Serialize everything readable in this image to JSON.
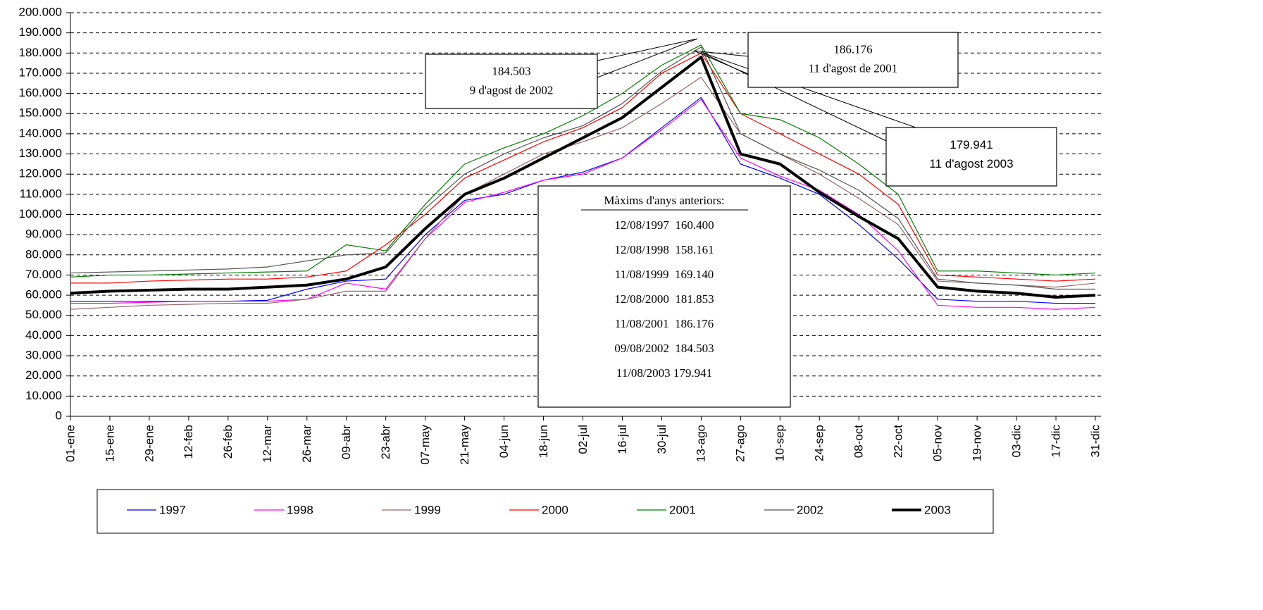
{
  "chart_data": {
    "type": "line",
    "categories": [
      "01-ene",
      "15-ene",
      "29-ene",
      "12-feb",
      "26-feb",
      "12-mar",
      "26-mar",
      "09-abr",
      "23-abr",
      "07-may",
      "21-may",
      "04-jun",
      "18-jun",
      "02-jul",
      "16-jul",
      "30-jul",
      "13-ago",
      "27-ago",
      "10-sep",
      "24-sep",
      "08-oct",
      "22-oct",
      "05-nov",
      "19-nov",
      "03-dic",
      "17-dic",
      "31-dic"
    ],
    "ylim": [
      0,
      200000
    ],
    "yticks": [
      0,
      {
        "value": 10000,
        "label": "10.000"
      },
      {
        "value": 20000,
        "label": "20.000"
      },
      {
        "value": 30000,
        "label": "30.000"
      },
      {
        "value": 40000,
        "label": "40.000"
      },
      {
        "value": 50000,
        "label": "50.000"
      },
      {
        "value": 60000,
        "label": "60.000"
      },
      {
        "value": 70000,
        "label": "70.000"
      },
      {
        "value": 80000,
        "label": "80.000"
      },
      {
        "value": 90000,
        "label": "90.000"
      },
      {
        "value": 100000,
        "label": "100.000"
      },
      {
        "value": 110000,
        "label": "110.000"
      },
      {
        "value": 120000,
        "label": "120.000"
      },
      {
        "value": 130000,
        "label": "130.000"
      },
      {
        "value": 140000,
        "label": "140.000"
      },
      {
        "value": 150000,
        "label": "150.000"
      },
      {
        "value": 160000,
        "label": "160.000"
      },
      {
        "value": 170000,
        "label": "170.000"
      },
      {
        "value": 180000,
        "label": "180.000"
      },
      {
        "value": 190000,
        "label": "190.000"
      },
      {
        "value": 200000,
        "label": "200.000"
      }
    ],
    "grid": true,
    "legend": "bottom",
    "series": [
      {
        "name": "1997",
        "color": "#0000ff",
        "linewidth": 1.2,
        "values": [
          57000,
          57000,
          57000,
          57000,
          57000,
          57500,
          63000,
          67000,
          68000,
          90000,
          107000,
          110000,
          117000,
          121000,
          128000,
          143000,
          158000,
          125000,
          118000,
          110000,
          95000,
          78000,
          58000,
          57000,
          57000,
          56000,
          56000
        ]
      },
      {
        "name": "1998",
        "color": "#ff00ff",
        "linewidth": 1.2,
        "values": [
          56000,
          56000,
          56500,
          57000,
          57000,
          57000,
          58000,
          66000,
          63000,
          88000,
          106000,
          111000,
          117000,
          120000,
          128000,
          142000,
          157000,
          128000,
          119000,
          112000,
          100000,
          82000,
          55000,
          54000,
          54000,
          53000,
          54000
        ]
      },
      {
        "name": "1999",
        "color": "#996666",
        "linewidth": 1.2,
        "values": [
          53000,
          54000,
          55000,
          55500,
          56000,
          56000,
          58000,
          62000,
          62000,
          88000,
          110000,
          120000,
          130000,
          136000,
          143000,
          155000,
          168000,
          140000,
          130000,
          120000,
          108000,
          95000,
          67000,
          66000,
          65000,
          64000,
          66000
        ]
      },
      {
        "name": "2000",
        "color": "#ff0000",
        "linewidth": 1.2,
        "values": [
          66000,
          66000,
          67000,
          67500,
          68000,
          68000,
          69000,
          72000,
          85000,
          100000,
          118000,
          127000,
          136000,
          143000,
          153000,
          170000,
          180000,
          150000,
          140000,
          130000,
          120000,
          105000,
          70000,
          69000,
          68000,
          67000,
          68000
        ]
      },
      {
        "name": "2001",
        "color": "#008000",
        "linewidth": 1.2,
        "values": [
          69000,
          70000,
          70000,
          70500,
          71000,
          71500,
          72000,
          85000,
          82000,
          105000,
          125000,
          133000,
          140000,
          149000,
          160000,
          174000,
          184000,
          150000,
          147000,
          138000,
          125000,
          110000,
          72000,
          72000,
          71000,
          70000,
          71000
        ]
      },
      {
        "name": "2002",
        "color": "#555555",
        "linewidth": 1.2,
        "values": [
          71000,
          71500,
          72000,
          72500,
          73000,
          74000,
          77000,
          80000,
          81000,
          103000,
          120000,
          130000,
          138000,
          144000,
          155000,
          171000,
          183000,
          140000,
          130000,
          122000,
          112000,
          98000,
          68000,
          66000,
          65000,
          63000,
          63000
        ]
      },
      {
        "name": "2003",
        "color": "#000000",
        "linewidth": 4,
        "values": [
          61000,
          62000,
          62500,
          63000,
          63000,
          64000,
          65000,
          68000,
          74000,
          93000,
          110000,
          118000,
          128000,
          138000,
          148000,
          163000,
          178000,
          130000,
          125000,
          111000,
          99000,
          88000,
          64000,
          62000,
          61000,
          59000,
          60000
        ]
      }
    ],
    "annotations": [
      {
        "lines": [
          "184.503",
          "9 d'agost de 2002"
        ]
      },
      {
        "lines": [
          "186.176",
          "11 d'agost de 2001"
        ]
      },
      {
        "lines": [
          "179.941",
          "11 d'agost 2003"
        ]
      },
      {
        "title": "Màxims d'anys anteriors:",
        "lines": [
          "12/08/1997  160.400",
          "12/08/1998  158.161",
          "11/08/1999  169.140",
          "12/08/2000  181.853",
          "11/08/2001  186.176",
          "09/08/2002  184.503",
          "11/08/2003 179.941"
        ]
      }
    ]
  }
}
